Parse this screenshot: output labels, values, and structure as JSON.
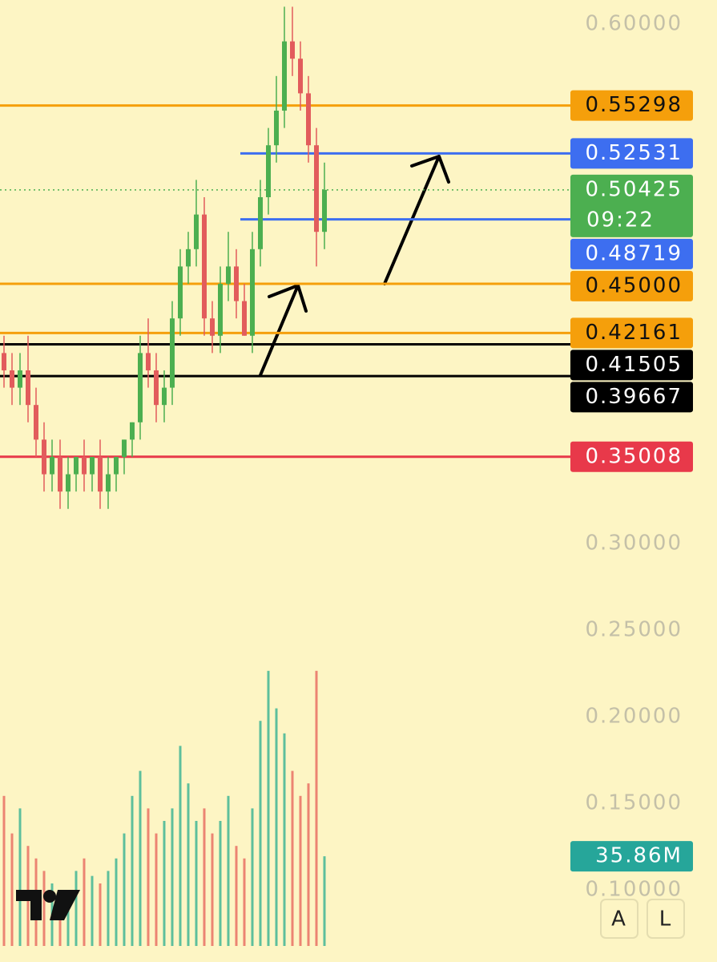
{
  "chart_data": {
    "type": "candlestick",
    "open": [
      0.41,
      0.4,
      0.39,
      0.4,
      0.38,
      0.36,
      0.34,
      0.35,
      0.33,
      0.34,
      0.35,
      0.34,
      0.35,
      0.33,
      0.34,
      0.35,
      0.36,
      0.37,
      0.41,
      0.4,
      0.38,
      0.39,
      0.43,
      0.46,
      0.47,
      0.49,
      0.43,
      0.42,
      0.45,
      0.46,
      0.44,
      0.42,
      0.47,
      0.5,
      0.53,
      0.55,
      0.59,
      0.58,
      0.56,
      0.53,
      0.48
    ],
    "high": [
      0.42,
      0.41,
      0.41,
      0.42,
      0.39,
      0.37,
      0.36,
      0.36,
      0.35,
      0.35,
      0.36,
      0.35,
      0.36,
      0.35,
      0.35,
      0.36,
      0.37,
      0.42,
      0.43,
      0.41,
      0.4,
      0.44,
      0.47,
      0.48,
      0.51,
      0.5,
      0.44,
      0.46,
      0.48,
      0.47,
      0.45,
      0.48,
      0.51,
      0.54,
      0.57,
      0.61,
      0.61,
      0.59,
      0.57,
      0.54,
      0.52
    ],
    "low": [
      0.39,
      0.38,
      0.38,
      0.37,
      0.35,
      0.33,
      0.33,
      0.32,
      0.32,
      0.33,
      0.33,
      0.33,
      0.32,
      0.32,
      0.33,
      0.34,
      0.35,
      0.36,
      0.39,
      0.37,
      0.37,
      0.38,
      0.42,
      0.45,
      0.46,
      0.42,
      0.41,
      0.41,
      0.44,
      0.43,
      0.42,
      0.41,
      0.46,
      0.49,
      0.52,
      0.54,
      0.57,
      0.55,
      0.52,
      0.46,
      0.47
    ],
    "close": [
      0.4,
      0.39,
      0.4,
      0.38,
      0.36,
      0.34,
      0.35,
      0.33,
      0.34,
      0.35,
      0.34,
      0.35,
      0.33,
      0.34,
      0.35,
      0.36,
      0.37,
      0.41,
      0.4,
      0.38,
      0.39,
      0.43,
      0.46,
      0.47,
      0.49,
      0.43,
      0.42,
      0.45,
      0.46,
      0.44,
      0.42,
      0.47,
      0.5,
      0.53,
      0.55,
      0.59,
      0.58,
      0.56,
      0.53,
      0.48,
      0.50425
    ],
    "volume": [
      60,
      45,
      55,
      40,
      35,
      30,
      25,
      20,
      22,
      30,
      35,
      28,
      25,
      30,
      35,
      45,
      60,
      70,
      55,
      45,
      50,
      55,
      80,
      65,
      50,
      55,
      45,
      50,
      60,
      40,
      35,
      55,
      90,
      110,
      95,
      85,
      70,
      60,
      65,
      110,
      35.86
    ],
    "volume_label": {
      "value": 35.86,
      "label": "35.86M"
    },
    "up_color": "#4caf50",
    "down_color": "#e25c5c",
    "volume_up_color": "#5dbf9c",
    "volume_down_color": "#ec8472",
    "ylim": [
      0.0583,
      0.6139
    ],
    "vlim": [
      0,
      125
    ],
    "yticks": [
      {
        "value": 0.6,
        "label": "0.60000"
      },
      {
        "value": 0.3,
        "label": "0.30000"
      },
      {
        "value": 0.25,
        "label": "0.25000"
      },
      {
        "value": 0.2,
        "label": "0.20000"
      },
      {
        "value": 0.15,
        "label": "0.15000"
      },
      {
        "value": 0.1,
        "label": "0.10000"
      }
    ],
    "levels": [
      {
        "value": 0.55298,
        "color": "#f59f0b"
      },
      {
        "value": 0.52531,
        "color": "#3d6ef0",
        "partial": true
      },
      {
        "value": 0.50425,
        "color": "#4caf50",
        "dotted": true
      },
      {
        "value": 0.48719,
        "color": "#3d6ef0",
        "partial": true
      },
      {
        "value": 0.45,
        "label": "0.45000",
        "color": "#f59f0b"
      },
      {
        "value": 0.42161,
        "color": "#f59f0b"
      },
      {
        "value": 0.41505,
        "color": "#000000"
      },
      {
        "value": 0.39667,
        "color": "#000000"
      },
      {
        "value": 0.35008,
        "color": "#e8394a"
      }
    ],
    "countdown": "09:22",
    "auto_button": "A",
    "log_button": "L"
  }
}
